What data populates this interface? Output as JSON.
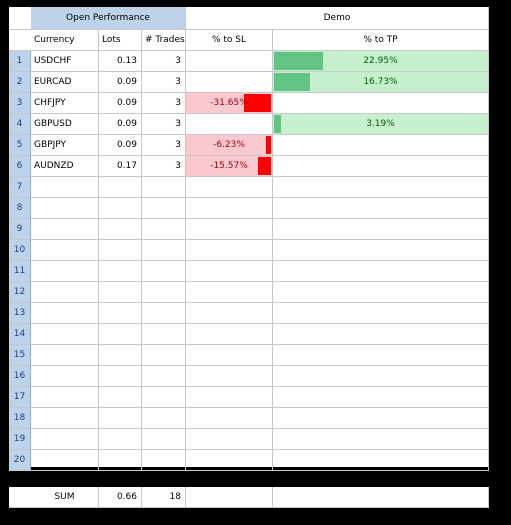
{
  "header": {
    "group_left": "Open Performance",
    "group_right": "Demo",
    "col_currency": "Currency",
    "col_lots": "Lots",
    "col_trades": "# Trades",
    "col_sl": "% to SL",
    "col_tp": "% to TP"
  },
  "colors": {
    "header_blue": "#bcd3ea",
    "sl_red": "#ff0000",
    "sl_pink": "#f9c9cf",
    "tp_green": "#63c384",
    "tp_light": "#c6efce"
  },
  "rows": [
    {
      "n": "1",
      "currency": "USDCHF",
      "lots": "0.13",
      "trades": "3",
      "sl": "",
      "tp": "22.95%",
      "tp_frac": 0.2295,
      "sl_frac": 0
    },
    {
      "n": "2",
      "currency": "EURCAD",
      "lots": "0.09",
      "trades": "3",
      "sl": "",
      "tp": "16.73%",
      "tp_frac": 0.1673,
      "sl_frac": 0
    },
    {
      "n": "3",
      "currency": "CHFJPY",
      "lots": "0.09",
      "trades": "3",
      "sl": "-31.65%",
      "tp": "",
      "tp_frac": 0,
      "sl_frac": 0.3165
    },
    {
      "n": "4",
      "currency": "GBPUSD",
      "lots": "0.09",
      "trades": "3",
      "sl": "",
      "tp": "3.19%",
      "tp_frac": 0.0319,
      "sl_frac": 0
    },
    {
      "n": "5",
      "currency": "GBPJPY",
      "lots": "0.09",
      "trades": "3",
      "sl": "-6.23%",
      "tp": "",
      "tp_frac": 0,
      "sl_frac": 0.0623
    },
    {
      "n": "6",
      "currency": "AUDNZD",
      "lots": "0.17",
      "trades": "3",
      "sl": "-15.57%",
      "tp": "",
      "tp_frac": 0,
      "sl_frac": 0.1557
    },
    {
      "n": "7",
      "currency": "",
      "lots": "",
      "trades": "",
      "sl": "",
      "tp": "",
      "tp_frac": 0,
      "sl_frac": 0
    },
    {
      "n": "8",
      "currency": "",
      "lots": "",
      "trades": "",
      "sl": "",
      "tp": "",
      "tp_frac": 0,
      "sl_frac": 0
    },
    {
      "n": "9",
      "currency": "",
      "lots": "",
      "trades": "",
      "sl": "",
      "tp": "",
      "tp_frac": 0,
      "sl_frac": 0
    },
    {
      "n": "10",
      "currency": "",
      "lots": "",
      "trades": "",
      "sl": "",
      "tp": "",
      "tp_frac": 0,
      "sl_frac": 0
    },
    {
      "n": "11",
      "currency": "",
      "lots": "",
      "trades": "",
      "sl": "",
      "tp": "",
      "tp_frac": 0,
      "sl_frac": 0
    },
    {
      "n": "12",
      "currency": "",
      "lots": "",
      "trades": "",
      "sl": "",
      "tp": "",
      "tp_frac": 0,
      "sl_frac": 0
    },
    {
      "n": "13",
      "currency": "",
      "lots": "",
      "trades": "",
      "sl": "",
      "tp": "",
      "tp_frac": 0,
      "sl_frac": 0
    },
    {
      "n": "14",
      "currency": "",
      "lots": "",
      "trades": "",
      "sl": "",
      "tp": "",
      "tp_frac": 0,
      "sl_frac": 0
    },
    {
      "n": "15",
      "currency": "",
      "lots": "",
      "trades": "",
      "sl": "",
      "tp": "",
      "tp_frac": 0,
      "sl_frac": 0
    },
    {
      "n": "16",
      "currency": "",
      "lots": "",
      "trades": "",
      "sl": "",
      "tp": "",
      "tp_frac": 0,
      "sl_frac": 0
    },
    {
      "n": "17",
      "currency": "",
      "lots": "",
      "trades": "",
      "sl": "",
      "tp": "",
      "tp_frac": 0,
      "sl_frac": 0
    },
    {
      "n": "18",
      "currency": "",
      "lots": "",
      "trades": "",
      "sl": "",
      "tp": "",
      "tp_frac": 0,
      "sl_frac": 0
    },
    {
      "n": "19",
      "currency": "",
      "lots": "",
      "trades": "",
      "sl": "",
      "tp": "",
      "tp_frac": 0,
      "sl_frac": 0
    },
    {
      "n": "20",
      "currency": "",
      "lots": "",
      "trades": "",
      "sl": "",
      "tp": "",
      "tp_frac": 0,
      "sl_frac": 0
    }
  ],
  "sum": {
    "label": "SUM",
    "lots": "0.66",
    "trades": "18"
  }
}
